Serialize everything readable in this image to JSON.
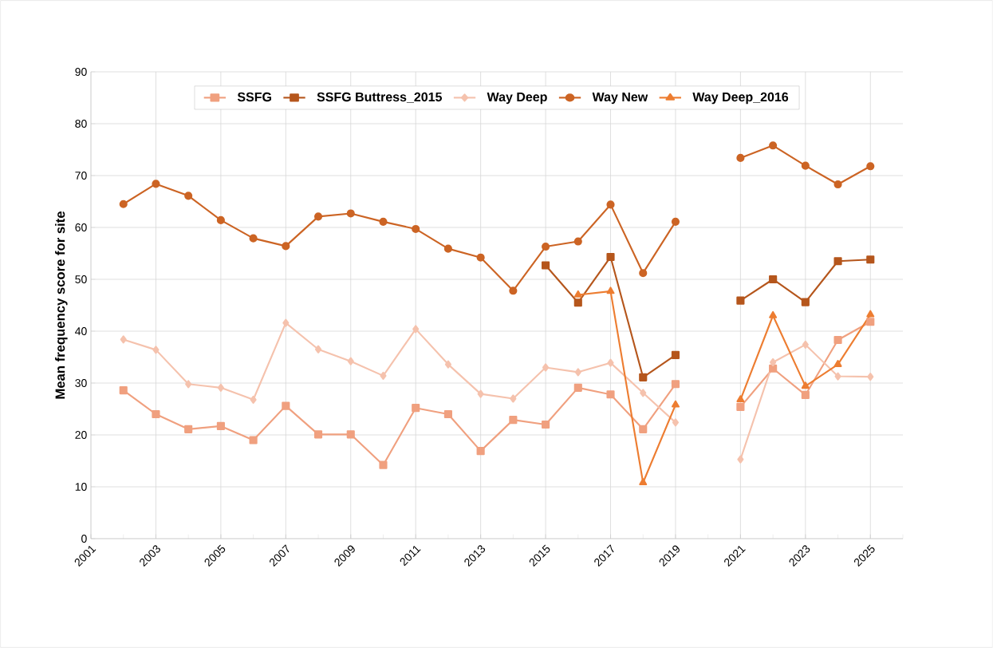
{
  "chart_data": {
    "type": "line",
    "ylabel": "Mean frequency score for site",
    "xlim": [
      2001,
      2026
    ],
    "xticks": [
      2001,
      2003,
      2005,
      2007,
      2009,
      2011,
      2013,
      2015,
      2017,
      2019,
      2021,
      2023,
      2025
    ],
    "ylim": [
      0,
      90
    ],
    "yticks": [
      0,
      10,
      20,
      30,
      40,
      50,
      60,
      70,
      80,
      90
    ],
    "grid": true,
    "legend": "top",
    "x": [
      2002,
      2003,
      2004,
      2005,
      2006,
      2007,
      2008,
      2009,
      2010,
      2011,
      2012,
      2013,
      2014,
      2015,
      2016,
      2017,
      2018,
      2019,
      2020,
      2021,
      2022,
      2023,
      2024,
      2025
    ],
    "series": [
      {
        "name": "SSFG",
        "color": "#f0a07f",
        "marker": "square",
        "values": [
          28.6,
          24.0,
          21.1,
          21.7,
          19.0,
          25.6,
          20.1,
          20.1,
          14.2,
          25.2,
          24.0,
          16.9,
          22.9,
          22.0,
          29.1,
          27.8,
          21.1,
          29.8,
          null,
          25.4,
          32.8,
          27.7,
          38.3,
          41.8
        ]
      },
      {
        "name": "SSFG Buttress_2015",
        "color": "#b5561c",
        "marker": "square",
        "x": [
          2015,
          2016,
          2017,
          2018,
          2019,
          2020,
          2021,
          2022,
          2023,
          2024,
          2025
        ],
        "values": [
          52.7,
          45.5,
          54.3,
          31.1,
          35.4,
          null,
          45.9,
          50.0,
          45.6,
          53.5,
          53.8
        ]
      },
      {
        "name": "Way Deep",
        "color": "#f5c2ad",
        "marker": "diamond",
        "values": [
          38.4,
          36.4,
          29.8,
          29.1,
          26.8,
          41.6,
          36.5,
          34.2,
          31.4,
          40.4,
          33.6,
          27.9,
          27.0,
          33.0,
          32.1,
          33.9,
          28.1,
          22.4,
          null,
          15.3,
          34.0,
          37.4,
          31.3,
          31.2
        ]
      },
      {
        "name": "Way New",
        "color": "#cc6424",
        "marker": "circle",
        "values": [
          64.5,
          68.4,
          66.1,
          61.4,
          57.9,
          56.4,
          62.1,
          62.7,
          61.1,
          59.7,
          55.9,
          54.2,
          47.8,
          56.3,
          57.3,
          64.4,
          51.2,
          61.1,
          null,
          73.4,
          75.8,
          71.9,
          68.3,
          71.8
        ]
      },
      {
        "name": "Way Deep_2016",
        "color": "#ed7d31",
        "marker": "triangle",
        "x": [
          2016,
          2017,
          2018,
          2019,
          2020,
          2021,
          2022,
          2023,
          2024,
          2025
        ],
        "values": [
          47.0,
          47.7,
          10.8,
          25.8,
          null,
          26.8,
          43.0,
          29.4,
          33.6,
          43.2
        ]
      }
    ]
  }
}
